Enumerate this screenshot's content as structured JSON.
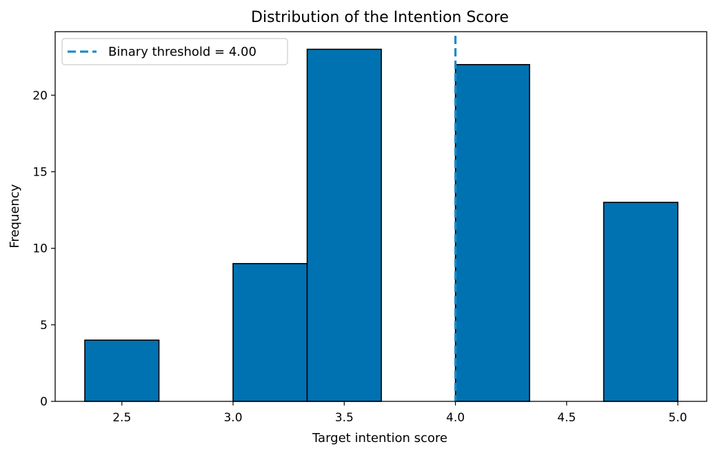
{
  "chart_data": {
    "type": "bar",
    "title": "Distribution of the Intention Score",
    "xlabel": "Target intention score",
    "ylabel": "Frequency",
    "bins": [
      {
        "start": 2.3333,
        "end": 2.6667,
        "count": 4
      },
      {
        "start": 2.6667,
        "end": 3.0,
        "count": 0
      },
      {
        "start": 3.0,
        "end": 3.3333,
        "count": 9
      },
      {
        "start": 3.3333,
        "end": 3.6667,
        "count": 23
      },
      {
        "start": 3.6667,
        "end": 4.0,
        "count": 0
      },
      {
        "start": 4.0,
        "end": 4.3333,
        "count": 22
      },
      {
        "start": 4.3333,
        "end": 4.6667,
        "count": 0
      },
      {
        "start": 4.6667,
        "end": 5.0,
        "count": 13
      }
    ],
    "xlim": [
      2.2,
      5.13
    ],
    "ylim": [
      0,
      24.15
    ],
    "xticks": [
      "2.5",
      "3.0",
      "3.5",
      "4.0",
      "4.5",
      "5.0"
    ],
    "xtick_values": [
      2.5,
      3.0,
      3.5,
      4.0,
      4.5,
      5.0
    ],
    "yticks": [
      "0",
      "5",
      "10",
      "15",
      "20"
    ],
    "ytick_values": [
      0,
      5,
      10,
      15,
      20
    ],
    "threshold": {
      "value": 4.0,
      "label": "Binary threshold = 4.00",
      "color": "#1f8bc6",
      "style": "dashed"
    },
    "bar_color": "#0072b2",
    "bar_edge_color": "#000000",
    "legend_position": "upper-left",
    "grid": false
  }
}
